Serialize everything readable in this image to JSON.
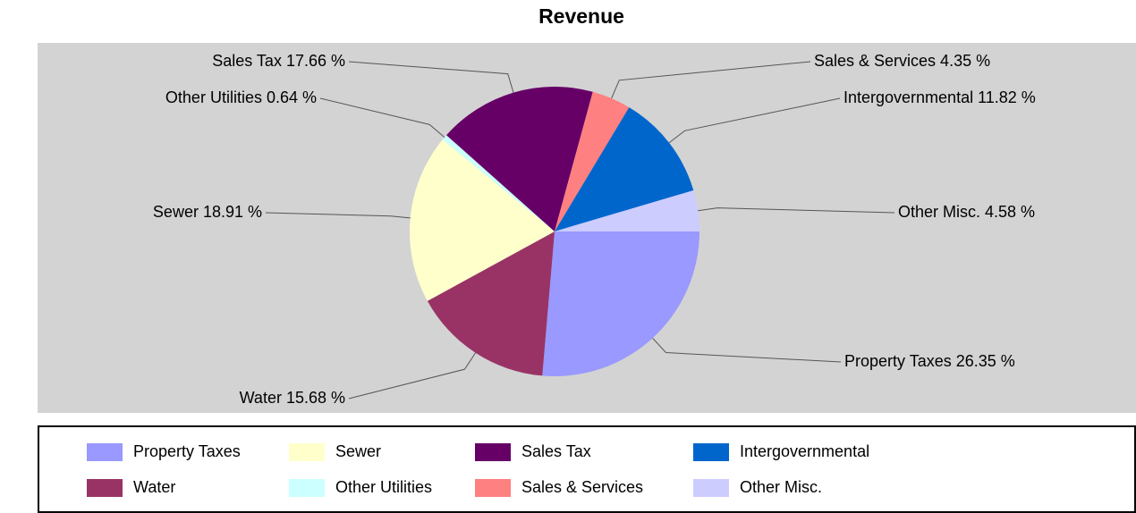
{
  "chart_data": {
    "type": "pie",
    "title": "Revenue",
    "categories": [
      "Property Taxes",
      "Water",
      "Sewer",
      "Other Utilities",
      "Sales Tax",
      "Sales & Services",
      "Intergovernmental",
      "Other Misc."
    ],
    "values": [
      26.35,
      15.68,
      18.91,
      0.64,
      17.66,
      4.35,
      11.82,
      4.58
    ],
    "value_labels": [
      "Property Taxes 26.35 %",
      "Water 15.68 %",
      "Sewer 18.91 %",
      "Other Utilities 0.64 %",
      "Sales Tax 17.66 %",
      "Sales & Services 4.35 %",
      "Intergovernmental 11.82 %",
      "Other Misc. 4.58 %"
    ],
    "colors": [
      "#9999ff",
      "#993366",
      "#ffffcc",
      "#ccffff",
      "#660066",
      "#ff8080",
      "#0066cc",
      "#ccccff"
    ],
    "legend": "bottom"
  }
}
